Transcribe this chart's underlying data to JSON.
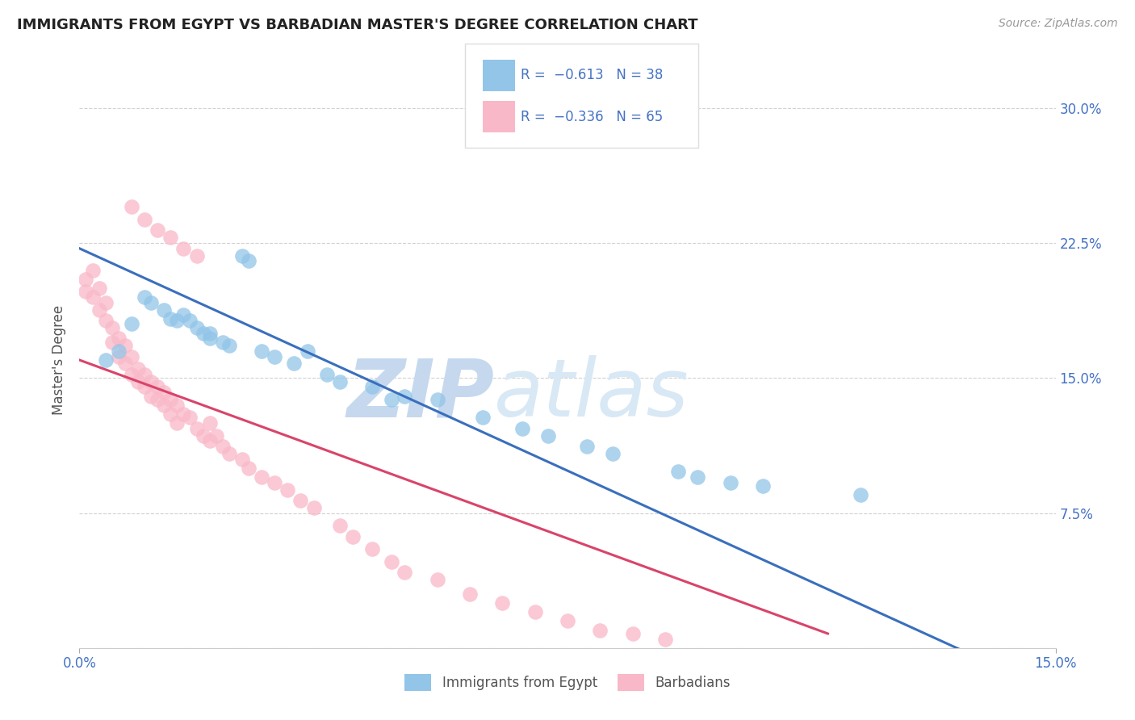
{
  "title": "IMMIGRANTS FROM EGYPT VS BARBADIAN MASTER'S DEGREE CORRELATION CHART",
  "source": "Source: ZipAtlas.com",
  "ylabel": "Master's Degree",
  "xlim": [
    0.0,
    0.15
  ],
  "ylim": [
    0.0,
    0.32
  ],
  "xticks": [
    0.0,
    0.15
  ],
  "xtick_labels": [
    "0.0%",
    "15.0%"
  ],
  "yticks": [
    0.0,
    0.075,
    0.15,
    0.225,
    0.3
  ],
  "ytick_labels_right": [
    "",
    "7.5%",
    "15.0%",
    "22.5%",
    "30.0%"
  ],
  "color_blue": "#92c5e8",
  "color_pink": "#f9b8c8",
  "line_color_blue": "#3a6fbd",
  "line_color_pink": "#d9446a",
  "watermark_zip": "ZIP",
  "watermark_atlas": "atlas",
  "watermark_color_dark": "#c5d8ee",
  "watermark_color_light": "#d8e8f5",
  "blue_line_x": [
    0.0,
    0.15
  ],
  "blue_line_y": [
    0.222,
    -0.025
  ],
  "pink_line_x": [
    0.0,
    0.115
  ],
  "pink_line_y": [
    0.16,
    0.008
  ],
  "blue_scatter_x": [
    0.004,
    0.006,
    0.008,
    0.01,
    0.011,
    0.013,
    0.014,
    0.015,
    0.016,
    0.017,
    0.018,
    0.019,
    0.02,
    0.02,
    0.022,
    0.023,
    0.025,
    0.026,
    0.028,
    0.03,
    0.033,
    0.038,
    0.04,
    0.045,
    0.05,
    0.055,
    0.062,
    0.068,
    0.072,
    0.078,
    0.082,
    0.092,
    0.095,
    0.1,
    0.105,
    0.12,
    0.048,
    0.035
  ],
  "blue_scatter_y": [
    0.16,
    0.165,
    0.18,
    0.195,
    0.192,
    0.188,
    0.183,
    0.182,
    0.185,
    0.182,
    0.178,
    0.175,
    0.175,
    0.172,
    0.17,
    0.168,
    0.218,
    0.215,
    0.165,
    0.162,
    0.158,
    0.152,
    0.148,
    0.145,
    0.14,
    0.138,
    0.128,
    0.122,
    0.118,
    0.112,
    0.108,
    0.098,
    0.095,
    0.092,
    0.09,
    0.085,
    0.138,
    0.165
  ],
  "pink_scatter_x": [
    0.001,
    0.001,
    0.002,
    0.002,
    0.003,
    0.003,
    0.004,
    0.004,
    0.005,
    0.005,
    0.006,
    0.006,
    0.007,
    0.007,
    0.008,
    0.008,
    0.009,
    0.009,
    0.01,
    0.01,
    0.011,
    0.011,
    0.012,
    0.012,
    0.013,
    0.013,
    0.014,
    0.014,
    0.015,
    0.015,
    0.016,
    0.017,
    0.018,
    0.019,
    0.02,
    0.02,
    0.021,
    0.022,
    0.023,
    0.025,
    0.026,
    0.028,
    0.03,
    0.032,
    0.034,
    0.036,
    0.04,
    0.042,
    0.045,
    0.048,
    0.05,
    0.055,
    0.06,
    0.065,
    0.07,
    0.075,
    0.08,
    0.085,
    0.09,
    0.008,
    0.01,
    0.012,
    0.014,
    0.016,
    0.018
  ],
  "pink_scatter_y": [
    0.205,
    0.198,
    0.21,
    0.195,
    0.2,
    0.188,
    0.192,
    0.182,
    0.178,
    0.17,
    0.172,
    0.162,
    0.168,
    0.158,
    0.162,
    0.152,
    0.155,
    0.148,
    0.152,
    0.145,
    0.148,
    0.14,
    0.145,
    0.138,
    0.142,
    0.135,
    0.138,
    0.13,
    0.135,
    0.125,
    0.13,
    0.128,
    0.122,
    0.118,
    0.125,
    0.115,
    0.118,
    0.112,
    0.108,
    0.105,
    0.1,
    0.095,
    0.092,
    0.088,
    0.082,
    0.078,
    0.068,
    0.062,
    0.055,
    0.048,
    0.042,
    0.038,
    0.03,
    0.025,
    0.02,
    0.015,
    0.01,
    0.008,
    0.005,
    0.245,
    0.238,
    0.232,
    0.228,
    0.222,
    0.218
  ]
}
